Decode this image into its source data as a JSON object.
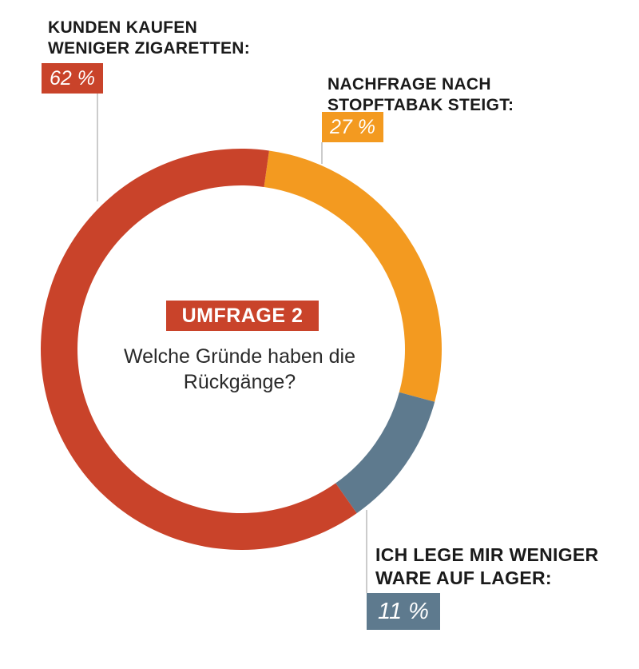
{
  "colors": {
    "red": "#c9432a",
    "orange": "#f39a20",
    "slate": "#5e7a8e",
    "leader": "#999999",
    "text": "#1a1a1a"
  },
  "chart_data": {
    "type": "pie",
    "donut": true,
    "center_badge": "UMFRAGE 2",
    "center_question": "Welche Gründe haben die Rückgänge?",
    "slices": [
      {
        "label_line1": "KUNDEN KAUFEN",
        "label_line2": "WENIGER ZIGARETTEN:",
        "value": 62,
        "value_label": "62 %",
        "color": "#c9432a"
      },
      {
        "label_line1": "NACHFRAGE NACH",
        "label_line2": "STOPFTABAK STEIGT:",
        "value": 27,
        "value_label": "27 %",
        "color": "#f39a20"
      },
      {
        "label_line1": "ICH LEGE MIR WENIGER",
        "label_line2": "WARE AUF LAGER:",
        "value": 11,
        "value_label": "11 %",
        "color": "#5e7a8e"
      }
    ]
  }
}
